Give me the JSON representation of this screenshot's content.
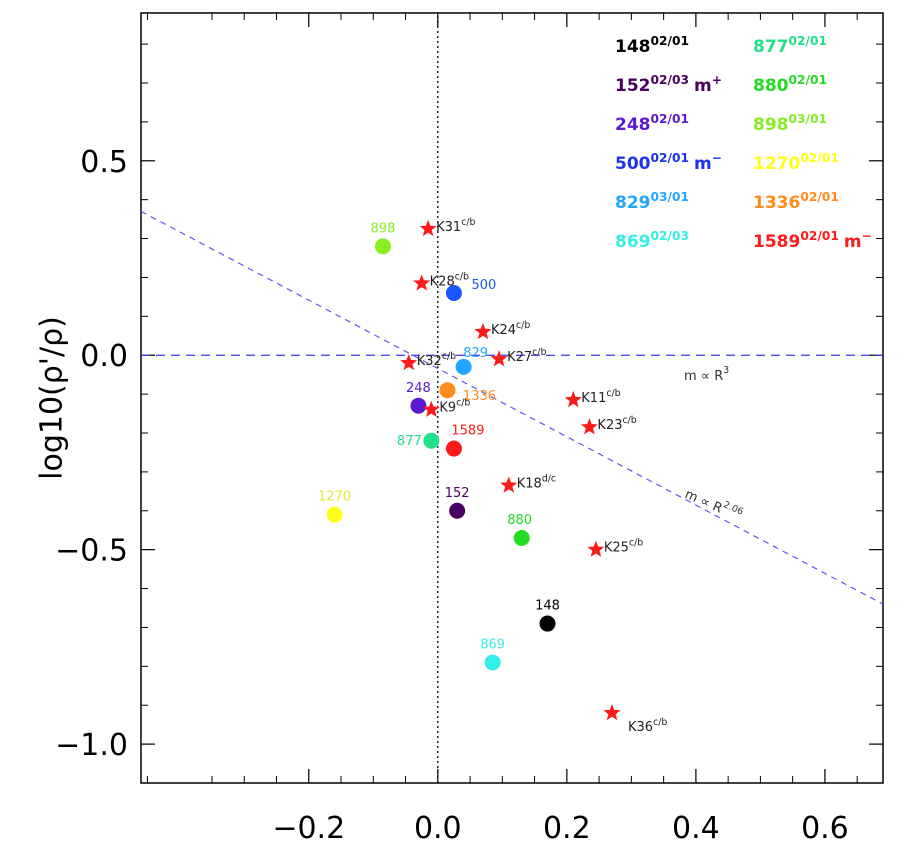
{
  "chart_data": {
    "type": "scatter",
    "title": "",
    "xlabel": "",
    "ylabel": "log10(ρ'/ρ)",
    "xlim": [
      -0.46,
      0.69
    ],
    "ylim": [
      -1.1,
      0.88
    ],
    "xticks": [
      -0.2,
      0.0,
      0.2,
      0.4,
      0.6
    ],
    "xtick_labels": [
      "−0.2",
      "0.0",
      "0.2",
      "0.4",
      "0.6"
    ],
    "yticks": [
      -1.0,
      -0.5,
      0.0,
      0.5
    ],
    "ytick_labels": [
      "−1.0",
      "−0.5",
      "0.0",
      "0.5"
    ],
    "grid": false,
    "legend_position": "top-right",
    "circles": [
      {
        "name": "148",
        "x": 0.17,
        "y": -0.69,
        "color": "#000000"
      },
      {
        "name": "152",
        "x": 0.03,
        "y": -0.4,
        "color": "#4a0060"
      },
      {
        "name": "248",
        "x": -0.03,
        "y": -0.13,
        "color": "#5a1ad0"
      },
      {
        "name": "500",
        "x": 0.025,
        "y": 0.16,
        "color": "#1a55ff"
      },
      {
        "name": "829",
        "x": 0.04,
        "y": -0.03,
        "color": "#23a6ff"
      },
      {
        "name": "869",
        "x": 0.085,
        "y": -0.79,
        "color": "#33efe6"
      },
      {
        "name": "877",
        "x": -0.01,
        "y": -0.22,
        "color": "#22e088"
      },
      {
        "name": "880",
        "x": 0.13,
        "y": -0.47,
        "color": "#22dd22"
      },
      {
        "name": "898",
        "x": -0.085,
        "y": 0.28,
        "color": "#88ee22"
      },
      {
        "name": "1270",
        "x": -0.16,
        "y": -0.41,
        "color": "#ffff1a"
      },
      {
        "name": "1336",
        "x": 0.015,
        "y": -0.09,
        "color": "#ff8c1a"
      },
      {
        "name": "1589",
        "x": 0.025,
        "y": -0.24,
        "color": "#ff1a1a"
      }
    ],
    "stars": [
      {
        "label": "K31",
        "sup": "c/b",
        "x": -0.015,
        "y": 0.325
      },
      {
        "label": "K28",
        "sup": "c/b",
        "x": -0.025,
        "y": 0.185
      },
      {
        "label": "K24",
        "sup": "c/b",
        "x": 0.07,
        "y": 0.06
      },
      {
        "label": "K32",
        "sup": "c/b",
        "x": -0.045,
        "y": -0.02
      },
      {
        "label": "K27",
        "sup": "c/b",
        "x": 0.095,
        "y": -0.01
      },
      {
        "label": "K9",
        "sup": "c/b",
        "x": -0.01,
        "y": -0.14
      },
      {
        "label": "K11",
        "sup": "c/b",
        "x": 0.21,
        "y": -0.115
      },
      {
        "label": "K23",
        "sup": "c/b",
        "x": 0.235,
        "y": -0.185
      },
      {
        "label": "K18",
        "sup": "d/c",
        "x": 0.11,
        "y": -0.335
      },
      {
        "label": "K25",
        "sup": "c/b",
        "x": 0.245,
        "y": -0.5
      },
      {
        "label": "K36",
        "sup": "c/b",
        "x": 0.27,
        "y": -0.92
      }
    ],
    "lines": [
      {
        "name": "m ∝ R³",
        "points": [
          [
            -0.46,
            0.0
          ],
          [
            0.69,
            0.0
          ]
        ],
        "style": "dashed",
        "color": "#3b3bf0"
      },
      {
        "name": "m ∝ R²·⁰⁶",
        "points": [
          [
            -0.46,
            0.37
          ],
          [
            0.69,
            -0.64
          ]
        ],
        "style": "dashed",
        "color": "#5a5af0"
      },
      {
        "name": "zero",
        "points": [
          [
            0.0,
            -1.1
          ],
          [
            0.0,
            0.88
          ]
        ],
        "style": "dotted",
        "color": "#000000"
      }
    ],
    "line_annotations": [
      {
        "text": "m ∝ R",
        "sup": "3"
      },
      {
        "text": "m ∝ R",
        "sup": "2.06"
      }
    ],
    "legend": [
      {
        "num": "148",
        "sup": "02/01",
        "suffix": "",
        "suffix_sup": "",
        "color": "#000000"
      },
      {
        "num": "152",
        "sup": "02/03",
        "suffix": "m",
        "suffix_sup": "+",
        "color": "#4a0060"
      },
      {
        "num": "248",
        "sup": "02/01",
        "suffix": "",
        "suffix_sup": "",
        "color": "#5a1ad0"
      },
      {
        "num": "500",
        "sup": "02/01",
        "suffix": "m",
        "suffix_sup": "−",
        "color": "#1a33ee"
      },
      {
        "num": "829",
        "sup": "03/01",
        "suffix": "",
        "suffix_sup": "",
        "color": "#23a6ff"
      },
      {
        "num": "869",
        "sup": "02/03",
        "suffix": "",
        "suffix_sup": "",
        "color": "#33efe6"
      },
      {
        "num": "877",
        "sup": "02/01",
        "suffix": "",
        "suffix_sup": "",
        "color": "#22e088"
      },
      {
        "num": "880",
        "sup": "02/01",
        "suffix": "",
        "suffix_sup": "",
        "color": "#22dd22"
      },
      {
        "num": "898",
        "sup": "03/01",
        "suffix": "",
        "suffix_sup": "",
        "color": "#88ee22"
      },
      {
        "num": "1270",
        "sup": "02/01",
        "suffix": "",
        "suffix_sup": "",
        "color": "#ffff1a"
      },
      {
        "num": "1336",
        "sup": "02/01",
        "suffix": "",
        "suffix_sup": "",
        "color": "#ff8c1a"
      },
      {
        "num": "1589",
        "sup": "02/01",
        "suffix": "m",
        "suffix_sup": "−",
        "color": "#ff1a1a"
      }
    ]
  }
}
